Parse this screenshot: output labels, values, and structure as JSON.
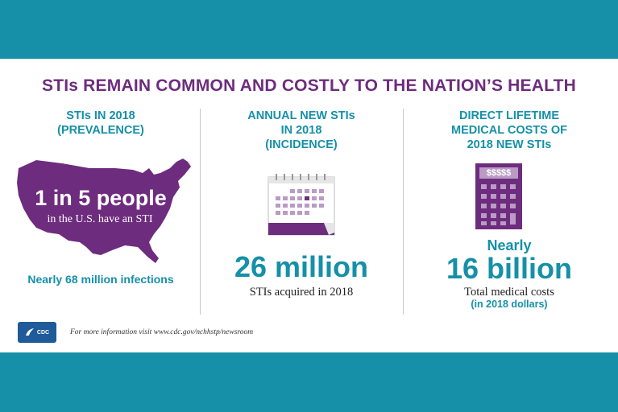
{
  "title": "STIs REMAIN COMMON AND COSTLY TO THE NATION’S HEALTH",
  "col1": {
    "head_line1": "STIs IN 2018",
    "head_line2": "(PREVALENCE)",
    "map_big": "1 in 5 people",
    "map_small": "in the U.S. have an STI",
    "footer": "Nearly 68 million infections"
  },
  "col2": {
    "head_line1": "ANNUAL NEW STIs",
    "head_line2": "IN 2018",
    "head_line3": "(INCIDENCE)",
    "big": "26 million",
    "caption": "STIs acquired in 2018"
  },
  "col3": {
    "head_line1": "DIRECT LIFETIME",
    "head_line2": "MEDICAL COSTS OF",
    "head_line3": "2018 NEW STIs",
    "calc_display": "$$$$$",
    "nearly": "Nearly",
    "big": "16 billion",
    "caption": "Total medical costs",
    "caption_sub": "(in 2018 dollars)"
  },
  "footer": {
    "logo_text": "CDC",
    "more_info": "For more information visit www.cdc.gov/nchhstp/newsroom"
  },
  "colors": {
    "purple": "#6e2c7e",
    "teal": "#1590a8",
    "light_purple": "#b99bc4"
  }
}
